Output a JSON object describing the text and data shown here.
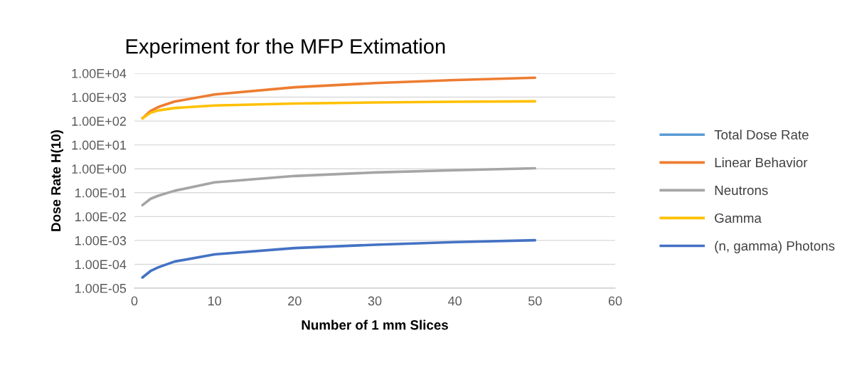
{
  "chart_data": {
    "type": "line",
    "title": "Experiment for the MFP Extimation",
    "xlabel": "Number of 1 mm Slices",
    "ylabel": "Dose Rate H(10)",
    "x": [
      1,
      2,
      3,
      5,
      10,
      20,
      30,
      40,
      50
    ],
    "series": [
      {
        "name": "Total Dose Rate",
        "color": "#5b9bd5",
        "values": [
          null,
          null,
          null,
          null,
          null,
          null,
          null,
          null,
          null
        ]
      },
      {
        "name": "Linear Behavior",
        "color": "#ed7d31",
        "values": [
          130,
          260,
          390,
          650,
          1300,
          2600,
          3900,
          5200,
          6500
        ]
      },
      {
        "name": "Neutrons",
        "color": "#a5a5a5",
        "values": [
          0.03,
          0.055,
          0.075,
          0.12,
          0.27,
          0.5,
          0.7,
          0.87,
          1.05
        ]
      },
      {
        "name": "Gamma",
        "color": "#ffc000",
        "values": [
          130,
          220,
          280,
          350,
          450,
          540,
          600,
          640,
          670
        ]
      },
      {
        "name": "(n, gamma) Photons",
        "color": "#4472c4",
        "values": [
          2.8e-05,
          5.2e-05,
          7.5e-05,
          0.00013,
          0.00026,
          0.00048,
          0.00066,
          0.00085,
          0.00102
        ]
      }
    ],
    "log": "y",
    "xlim": [
      0,
      60
    ],
    "xticks": [
      0,
      10,
      20,
      30,
      40,
      50,
      60
    ],
    "ylim": [
      1e-05,
      10000.0
    ],
    "yticks": [
      {
        "value": 1e-05,
        "label": "1.00E-05"
      },
      {
        "value": 0.0001,
        "label": "1.00E-04"
      },
      {
        "value": 0.001,
        "label": "1.00E-03"
      },
      {
        "value": 0.01,
        "label": "1.00E-02"
      },
      {
        "value": 0.1,
        "label": "1.00E-01"
      },
      {
        "value": 1,
        "label": "1.00E+00"
      },
      {
        "value": 10,
        "label": "1.00E+01"
      },
      {
        "value": 100,
        "label": "1.00E+02"
      },
      {
        "value": 1000,
        "label": "1.00E+03"
      },
      {
        "value": 10000,
        "label": "1.00E+04"
      }
    ],
    "grid": "y",
    "legend": "right",
    "marker": "none",
    "line_style": "solid"
  }
}
